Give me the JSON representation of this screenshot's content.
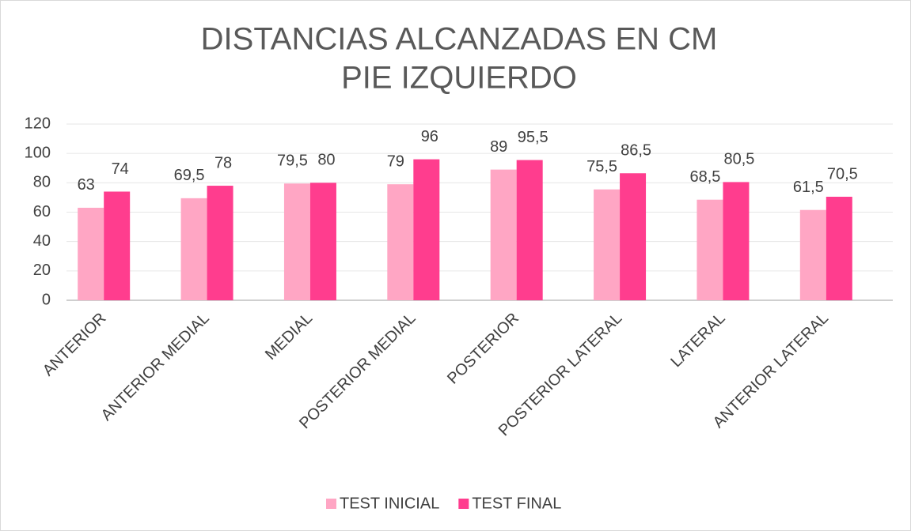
{
  "chart_data": {
    "type": "bar",
    "title": [
      "DISTANCIAS ALCANZADAS EN CM",
      "PIE IZQUIERDO"
    ],
    "categories": [
      "ANTERIOR",
      "ANTERIOR MEDIAL",
      "MEDIAL",
      "POSTERIOR MEDIAL",
      "POSTERIOR",
      "POSTERIOR LATERAL",
      "LATERAL",
      "ANTERIOR LATERAL"
    ],
    "series": [
      {
        "name": "TEST INICIAL",
        "color": "#ffa6c4",
        "values": [
          63,
          69.5,
          79.5,
          79,
          89,
          75.5,
          68.5,
          61.5
        ],
        "value_labels": [
          "63",
          "69,5",
          "79,5",
          "79",
          "89",
          "75,5",
          "68,5",
          "61,5"
        ]
      },
      {
        "name": "TEST FINAL",
        "color": "#ff3d8e",
        "values": [
          74,
          78,
          80,
          96,
          95.5,
          86.5,
          80.5,
          70.5
        ],
        "value_labels": [
          "74",
          "78",
          "80",
          "96",
          "95,5",
          "86,5",
          "80,5",
          "70,5"
        ]
      }
    ],
    "ylim": [
      0,
      120
    ],
    "yticks": [
      0,
      20,
      40,
      60,
      80,
      100,
      120
    ],
    "grid": true,
    "legend": "bottom"
  }
}
